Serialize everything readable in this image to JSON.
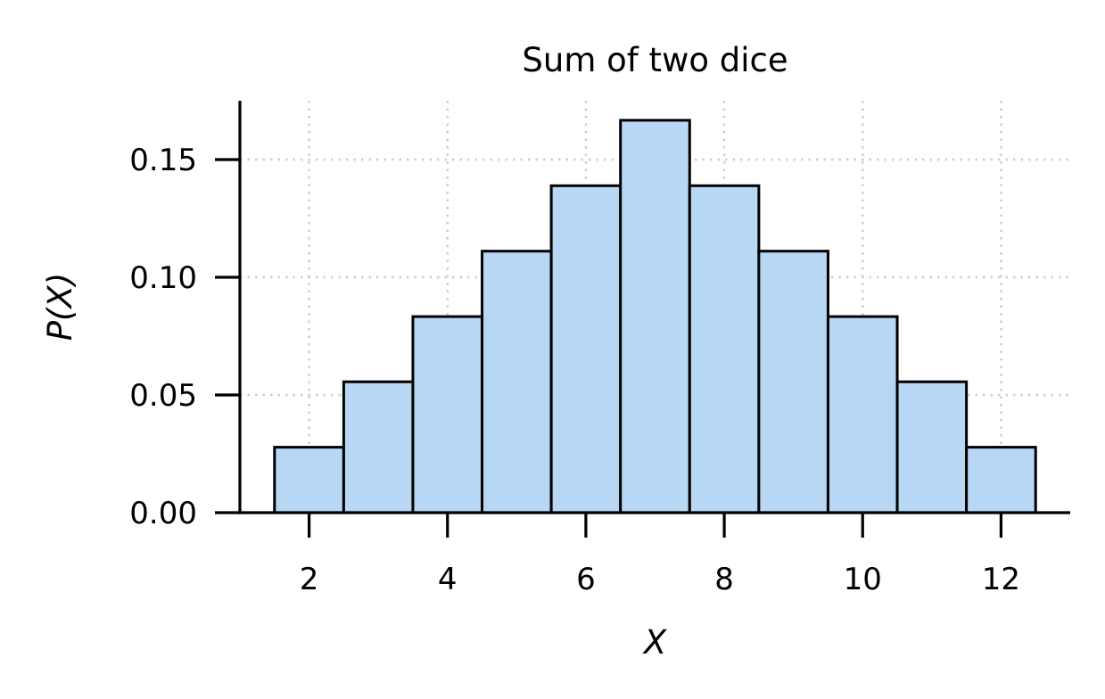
{
  "chart_data": {
    "type": "bar",
    "title": "Sum of two dice",
    "xlabel": "X",
    "ylabel": "P(X)",
    "categories": [
      2,
      3,
      4,
      5,
      6,
      7,
      8,
      9,
      10,
      11,
      12
    ],
    "values": [
      0.0278,
      0.0556,
      0.0833,
      0.1111,
      0.1389,
      0.1667,
      0.1389,
      0.1111,
      0.0833,
      0.0556,
      0.0278
    ],
    "bar_width": 1.0,
    "xlim": [
      1,
      13
    ],
    "ylim": [
      0,
      0.175
    ],
    "xticks": [
      2,
      4,
      6,
      8,
      10,
      12
    ],
    "xtick_labels": [
      "2",
      "4",
      "6",
      "8",
      "10",
      "12"
    ],
    "yticks": [
      0,
      0.05,
      0.1,
      0.15
    ],
    "ytick_labels": [
      "0.00",
      "0.05",
      "0.10",
      "0.15"
    ],
    "grid": true,
    "bar_color": "#b8d7f5",
    "edge_color": "#000000"
  }
}
